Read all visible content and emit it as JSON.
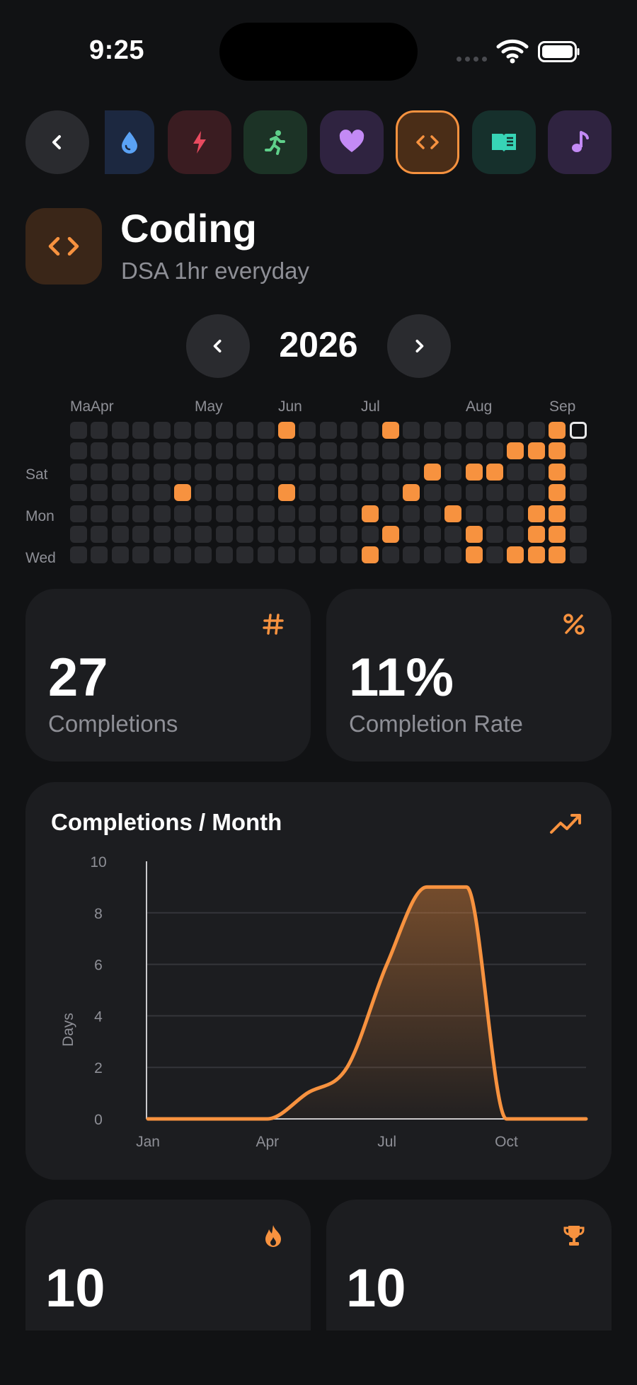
{
  "status_bar": {
    "time": "9:25"
  },
  "habit_strip": {
    "habits": [
      {
        "icon": "water-drop-icon",
        "color": "#5aa2f5",
        "bg": "#1c2840",
        "selected": false
      },
      {
        "icon": "lightning-icon",
        "color": "#e84a5f",
        "bg": "#3a1c21",
        "selected": false
      },
      {
        "icon": "running-icon",
        "color": "#5fd08a",
        "bg": "#1c3326",
        "selected": false
      },
      {
        "icon": "heart-icon",
        "color": "#c38af5",
        "bg": "#2f2340",
        "selected": false
      },
      {
        "icon": "code-icon",
        "color": "#f7923f",
        "bg": "#4a2d17",
        "selected": true
      },
      {
        "icon": "book-icon",
        "color": "#37d4b6",
        "bg": "#16302c",
        "selected": false
      },
      {
        "icon": "music-note-icon",
        "color": "#c38af5",
        "bg": "#2f2340",
        "selected": false
      }
    ]
  },
  "habit": {
    "title": "Coding",
    "subtitle": "DSA 1hr everyday",
    "accent": "#f7923f"
  },
  "year_nav": {
    "year": "2026"
  },
  "heatmap": {
    "month_labels": [
      "Ma",
      "Apr",
      "May",
      "Jun",
      "Jul",
      "Aug",
      "Sep"
    ],
    "day_labels": [
      "Sat",
      "Mon",
      "Wed"
    ],
    "weeks": 25,
    "days_per_week": 7,
    "completed_cells": [
      [
        10,
        0
      ],
      [
        15,
        0
      ],
      [
        23,
        0
      ],
      [
        21,
        1
      ],
      [
        22,
        1
      ],
      [
        23,
        1
      ],
      [
        17,
        2
      ],
      [
        19,
        2
      ],
      [
        20,
        2
      ],
      [
        23,
        2
      ],
      [
        5,
        3
      ],
      [
        10,
        3
      ],
      [
        16,
        3
      ],
      [
        23,
        3
      ],
      [
        14,
        4
      ],
      [
        18,
        4
      ],
      [
        22,
        4
      ],
      [
        23,
        4
      ],
      [
        15,
        5
      ],
      [
        19,
        5
      ],
      [
        22,
        5
      ],
      [
        23,
        5
      ],
      [
        14,
        6
      ],
      [
        19,
        6
      ],
      [
        21,
        6
      ],
      [
        22,
        6
      ],
      [
        23,
        6
      ]
    ],
    "today_cell": [
      24,
      0
    ]
  },
  "stats": {
    "completions": {
      "value": "27",
      "label": "Completions",
      "icon": "hash-icon"
    },
    "rate": {
      "value": "11%",
      "label": "Completion Rate",
      "icon": "percent-icon"
    },
    "current_streak": {
      "value": "10",
      "icon": "flame-icon"
    },
    "best_streak": {
      "value": "10",
      "icon": "trophy-icon"
    }
  },
  "chart_data": {
    "type": "area",
    "title": "Completions / Month",
    "ylabel": "Days",
    "xlabel": "",
    "x": [
      "Jan",
      "Feb",
      "Mar",
      "Apr",
      "May",
      "Jun",
      "Jul",
      "Aug",
      "Sep",
      "Oct",
      "Nov",
      "Dec"
    ],
    "x_tick_labels": [
      "Jan",
      "Apr",
      "Jul",
      "Oct"
    ],
    "ylim": [
      0,
      10
    ],
    "y_ticks": [
      0,
      2,
      4,
      6,
      8,
      10
    ],
    "grid": true,
    "series": [
      {
        "values": [
          0,
          0,
          0,
          0,
          1,
          2,
          6,
          9,
          9,
          0,
          0,
          0
        ],
        "color": "#f7923f"
      }
    ]
  }
}
